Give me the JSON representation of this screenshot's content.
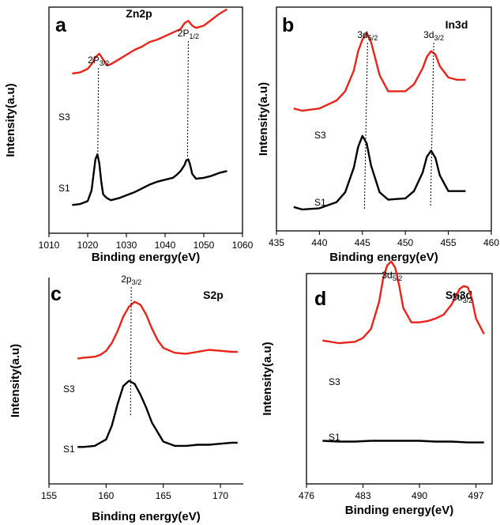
{
  "chart_data": [
    {
      "type": "line",
      "panel_letter": "a",
      "element": "Zn2p",
      "xlabel": "Binding energy(eV)",
      "ylabel": "Intensity(a.u)",
      "xlim": [
        1010,
        1060
      ],
      "xticks": [
        1010,
        1020,
        1030,
        1040,
        1050,
        1060
      ],
      "peak_labels": [
        {
          "main": "2P",
          "sub": "3/2",
          "x": 1022.8
        },
        {
          "main": "2P",
          "sub": "1/2",
          "x": 1046.0
        }
      ],
      "series": [
        {
          "name": "S1",
          "color": "#000000",
          "x": [
            1016,
            1018,
            1020,
            1021,
            1022,
            1022.5,
            1023,
            1023.5,
            1024,
            1025,
            1026,
            1028,
            1030,
            1032,
            1034,
            1036,
            1038,
            1040,
            1042,
            1043,
            1044,
            1045,
            1045.5,
            1046,
            1046.5,
            1047,
            1048,
            1050,
            1052,
            1054,
            1056
          ],
          "y": [
            0.03,
            0.04,
            0.07,
            0.18,
            0.5,
            0.55,
            0.46,
            0.27,
            0.14,
            0.1,
            0.08,
            0.1,
            0.13,
            0.16,
            0.2,
            0.24,
            0.27,
            0.29,
            0.31,
            0.34,
            0.38,
            0.44,
            0.49,
            0.5,
            0.44,
            0.35,
            0.3,
            0.31,
            0.33,
            0.36,
            0.38
          ]
        },
        {
          "name": "S3",
          "color": "#e8241b",
          "x": [
            1016,
            1018,
            1020,
            1021,
            1022,
            1023,
            1024,
            1025,
            1026,
            1028,
            1030,
            1032,
            1034,
            1036,
            1038,
            1040,
            1042,
            1044,
            1045,
            1046,
            1047,
            1048,
            1050,
            1052,
            1054,
            1056
          ],
          "y": [
            0.52,
            0.53,
            0.56,
            0.6,
            0.66,
            0.69,
            0.64,
            0.59,
            0.6,
            0.64,
            0.68,
            0.72,
            0.75,
            0.79,
            0.81,
            0.84,
            0.87,
            0.9,
            0.95,
            0.97,
            0.93,
            0.91,
            0.93,
            0.98,
            1.03,
            1.07
          ]
        }
      ]
    },
    {
      "type": "line",
      "panel_letter": "b",
      "element": "In3d",
      "xlabel": "Binding energy(eV)",
      "ylabel": "Intensity(a.u)",
      "xlim": [
        435,
        460
      ],
      "xticks": [
        435,
        440,
        445,
        450,
        455,
        460
      ],
      "peak_labels": [
        {
          "main": "3d",
          "sub": "5/2",
          "x": 445.6
        },
        {
          "main": "3d",
          "sub": "3/2",
          "x": 453.3
        }
      ],
      "series": [
        {
          "name": "S1",
          "color": "#000000",
          "x": [
            437,
            438,
            440,
            442,
            443,
            444,
            444.5,
            445,
            445.5,
            446,
            447,
            448,
            450,
            451,
            452,
            452.5,
            453,
            453.5,
            454,
            455,
            456,
            457
          ],
          "y": [
            0.04,
            0.02,
            0.03,
            0.08,
            0.16,
            0.36,
            0.53,
            0.62,
            0.56,
            0.38,
            0.16,
            0.1,
            0.11,
            0.17,
            0.32,
            0.45,
            0.5,
            0.44,
            0.3,
            0.17,
            0.17,
            0.17
          ]
        },
        {
          "name": "S3",
          "color": "#e8241b",
          "x": [
            437,
            438,
            440,
            442,
            443,
            444,
            444.5,
            445,
            445.5,
            446,
            447,
            448,
            450,
            451,
            452,
            452.5,
            453,
            453.5,
            454,
            455,
            456,
            457
          ],
          "y": [
            0.33,
            0.31,
            0.33,
            0.4,
            0.48,
            0.66,
            0.83,
            0.93,
            0.99,
            0.91,
            0.62,
            0.48,
            0.48,
            0.54,
            0.68,
            0.78,
            0.83,
            0.8,
            0.7,
            0.6,
            0.58,
            0.58
          ]
        }
      ]
    },
    {
      "type": "line",
      "panel_letter": "c",
      "element": "S2p",
      "xlabel": "Binding energy(eV)",
      "ylabel": "Intensity(a.u)",
      "xlim": [
        155,
        172
      ],
      "xticks": [
        155,
        160,
        165,
        170
      ],
      "peak_labels": [
        {
          "main": "2p",
          "sub": "3/2",
          "x": 162.2
        }
      ],
      "series": [
        {
          "name": "S1",
          "color": "#000000",
          "x": [
            157.5,
            158,
            159,
            160,
            160.5,
            161,
            161.5,
            162,
            162.5,
            163,
            163.5,
            164,
            165,
            166,
            167,
            168,
            169,
            170,
            171,
            171.5
          ],
          "y": [
            0.05,
            0.05,
            0.06,
            0.12,
            0.25,
            0.45,
            0.62,
            0.67,
            0.64,
            0.54,
            0.42,
            0.28,
            0.1,
            0.06,
            0.06,
            0.07,
            0.07,
            0.08,
            0.09,
            0.09
          ]
        },
        {
          "name": "S3",
          "color": "#e8241b",
          "x": [
            157.5,
            158,
            159,
            159.5,
            160,
            160.5,
            161,
            161.5,
            162,
            162.5,
            163,
            163.5,
            164,
            164.5,
            165,
            166,
            167,
            168,
            169,
            170,
            171,
            171.5
          ],
          "y": [
            0.39,
            0.4,
            0.41,
            0.43,
            0.47,
            0.55,
            0.67,
            0.82,
            0.92,
            0.97,
            0.94,
            0.84,
            0.7,
            0.58,
            0.5,
            0.45,
            0.44,
            0.46,
            0.48,
            0.47,
            0.46,
            0.46
          ]
        }
      ]
    },
    {
      "type": "line",
      "panel_letter": "d",
      "element": "Sn3d",
      "xlabel": "Binding energy(eV)",
      "ylabel": "Intensity(a.u)",
      "xlim": [
        476,
        499
      ],
      "xticks": [
        476,
        483,
        490,
        497
      ],
      "peak_labels": [
        {
          "main": "3d",
          "sub": "5/2",
          "x": 486.6
        },
        {
          "main": "3d",
          "sub": "3/2",
          "x": 495.3
        }
      ],
      "series": [
        {
          "name": "S1",
          "color": "#000000",
          "x": [
            478,
            480,
            482,
            484,
            486,
            488,
            490,
            492,
            494,
            496,
            498
          ],
          "y": [
            0.04,
            0.035,
            0.035,
            0.04,
            0.04,
            0.04,
            0.04,
            0.035,
            0.035,
            0.03,
            0.03
          ]
        },
        {
          "name": "S3",
          "color": "#e8241b",
          "x": [
            478,
            480,
            482,
            483,
            484,
            485,
            485.5,
            486,
            486.5,
            487,
            487.5,
            488,
            489,
            490,
            491,
            492,
            493,
            494,
            495,
            495.5,
            496,
            496.5,
            497,
            498
          ],
          "y": [
            0.38,
            0.36,
            0.37,
            0.4,
            0.47,
            0.68,
            0.86,
            0.96,
            0.99,
            0.94,
            0.8,
            0.63,
            0.52,
            0.52,
            0.53,
            0.55,
            0.58,
            0.66,
            0.78,
            0.8,
            0.79,
            0.7,
            0.55,
            0.43
          ]
        }
      ]
    }
  ]
}
